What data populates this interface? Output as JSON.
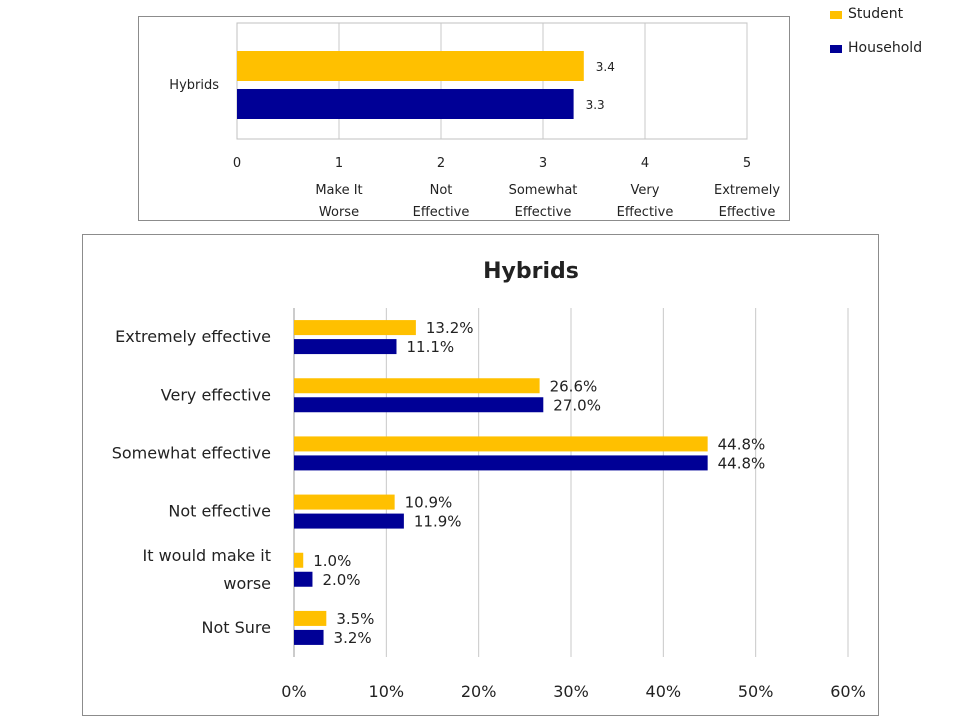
{
  "legend": {
    "items": [
      {
        "label": "Student",
        "color": "#ffc000"
      },
      {
        "label": "Household",
        "color": "#000096"
      }
    ]
  },
  "chart_data": [
    {
      "type": "bar",
      "orientation": "horizontal",
      "title": "",
      "categories": [
        "Hybrids"
      ],
      "series": [
        {
          "name": "Student",
          "color": "#ffc000",
          "values": [
            3.4
          ],
          "labels": [
            "3.4"
          ]
        },
        {
          "name": "Household",
          "color": "#000096",
          "values": [
            3.3
          ],
          "labels": [
            "3.3"
          ]
        }
      ],
      "xlim": [
        0,
        5
      ],
      "x_ticks": [
        0,
        1,
        2,
        3,
        4,
        5
      ],
      "x_tick_labels": [
        "0",
        "1",
        "2",
        "3",
        "4",
        "5"
      ],
      "x_tick_sublabels": [
        [],
        [
          "Make It",
          "Worse"
        ],
        [
          "Not",
          "Effective"
        ],
        [
          "Somewhat",
          "Effective"
        ],
        [
          "Very",
          "Effective"
        ],
        [
          "Extremely",
          "Effective"
        ]
      ],
      "grid": true
    },
    {
      "type": "bar",
      "orientation": "horizontal",
      "title": "Hybrids",
      "categories": [
        "Extremely effective",
        "Very effective",
        "Somewhat effective",
        "Not effective",
        "It would make it worse",
        "Not Sure"
      ],
      "category_lines": [
        [
          "Extremely effective"
        ],
        [
          "Very effective"
        ],
        [
          "Somewhat effective"
        ],
        [
          "Not effective"
        ],
        [
          "It would make it",
          "worse"
        ],
        [
          "Not Sure"
        ]
      ],
      "series": [
        {
          "name": "Student",
          "color": "#ffc000",
          "values": [
            13.2,
            26.6,
            44.8,
            10.9,
            1.0,
            3.5
          ],
          "labels": [
            "13.2%",
            "26.6%",
            "44.8%",
            "10.9%",
            "1.0%",
            "3.5%"
          ]
        },
        {
          "name": "Household",
          "color": "#000096",
          "values": [
            11.1,
            27.0,
            44.8,
            11.9,
            2.0,
            3.2
          ],
          "labels": [
            "11.1%",
            "27.0%",
            "44.8%",
            "11.9%",
            "2.0%",
            "3.2%"
          ]
        }
      ],
      "xlim": [
        0,
        60
      ],
      "x_ticks": [
        0,
        10,
        20,
        30,
        40,
        50,
        60
      ],
      "x_tick_labels": [
        "0%",
        "10%",
        "20%",
        "30%",
        "40%",
        "50%",
        "60%"
      ],
      "grid": true
    }
  ]
}
